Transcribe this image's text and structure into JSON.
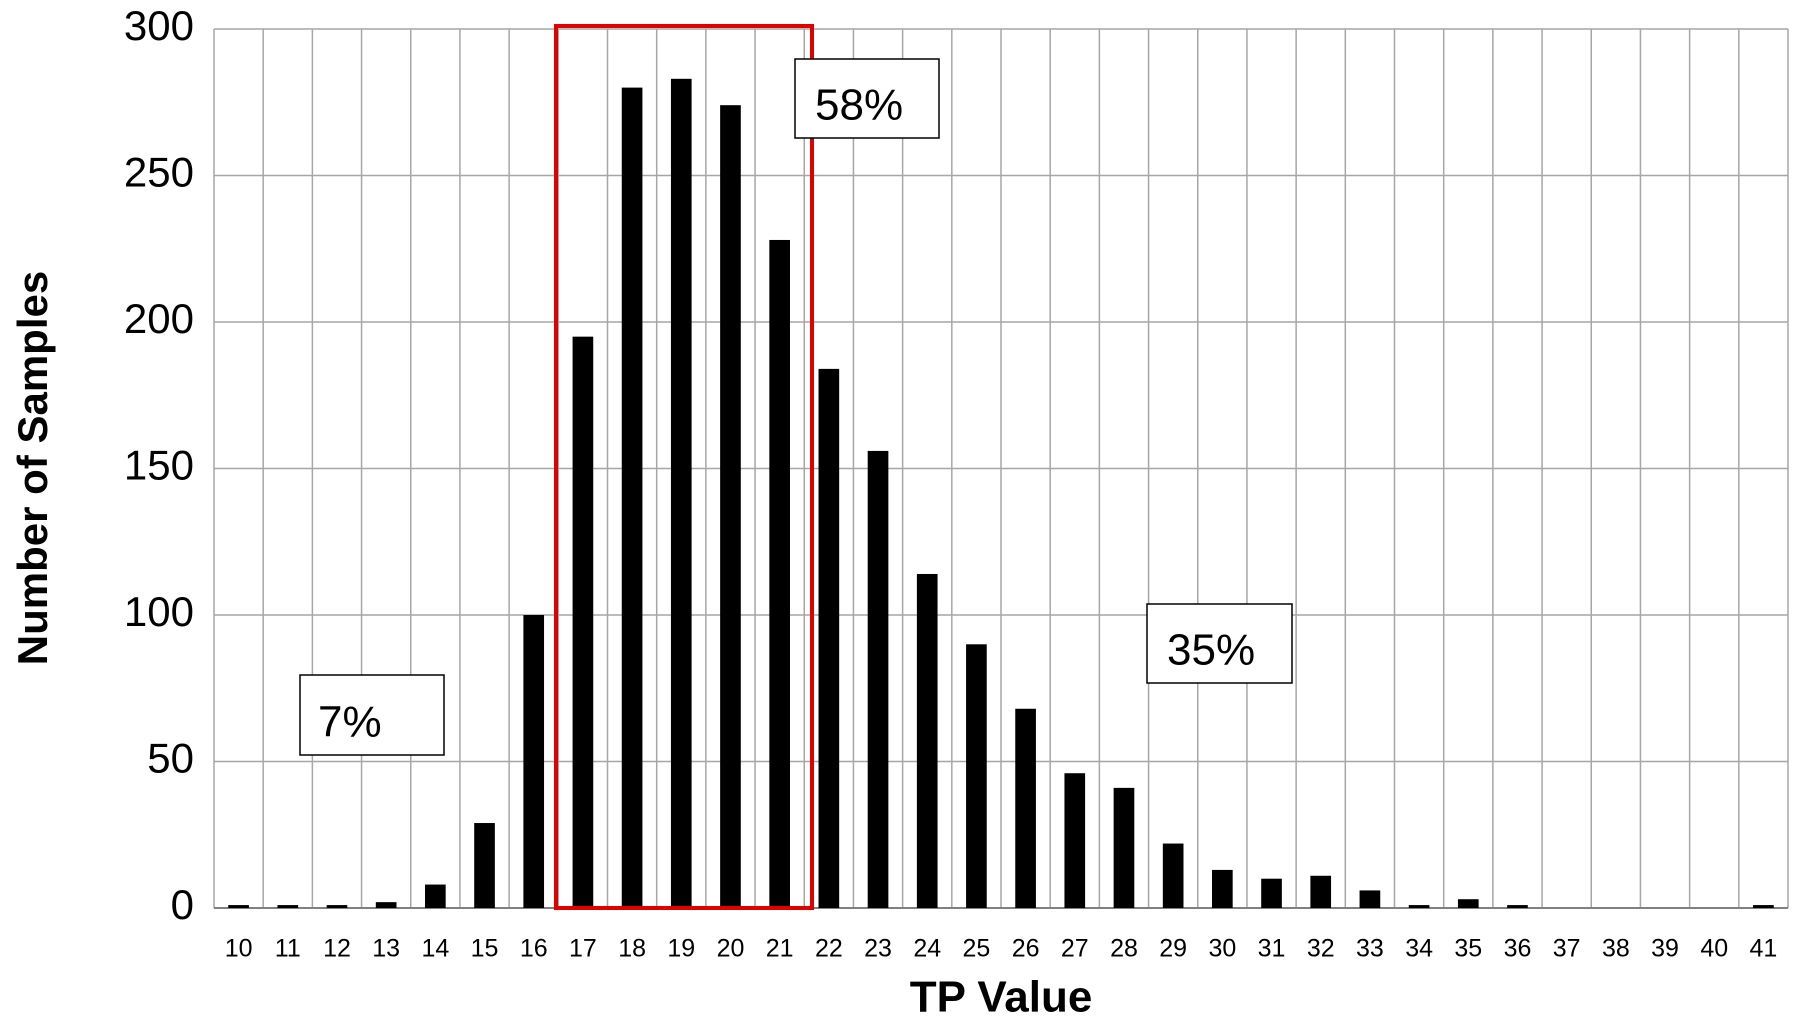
{
  "chart_data": {
    "type": "bar",
    "x_label": "TP Value",
    "y_label": "Number of Samples",
    "categories": [
      "10",
      "11",
      "12",
      "13",
      "14",
      "15",
      "16",
      "17",
      "18",
      "19",
      "20",
      "21",
      "22",
      "23",
      "24",
      "25",
      "26",
      "27",
      "28",
      "29",
      "30",
      "31",
      "32",
      "33",
      "34",
      "35",
      "36",
      "37",
      "38",
      "39",
      "40",
      "41"
    ],
    "values": [
      1,
      1,
      1,
      2,
      8,
      29,
      100,
      195,
      280,
      283,
      274,
      228,
      184,
      156,
      114,
      90,
      68,
      46,
      41,
      22,
      13,
      10,
      11,
      6,
      1,
      3,
      1,
      0,
      0,
      0,
      0,
      1
    ],
    "color": "#000000",
    "ylim": [
      0,
      300
    ],
    "yticks": [
      0,
      50,
      100,
      150,
      200,
      250,
      300
    ],
    "grid": true,
    "annotations": [
      "58%",
      "7%",
      "35%"
    ]
  }
}
